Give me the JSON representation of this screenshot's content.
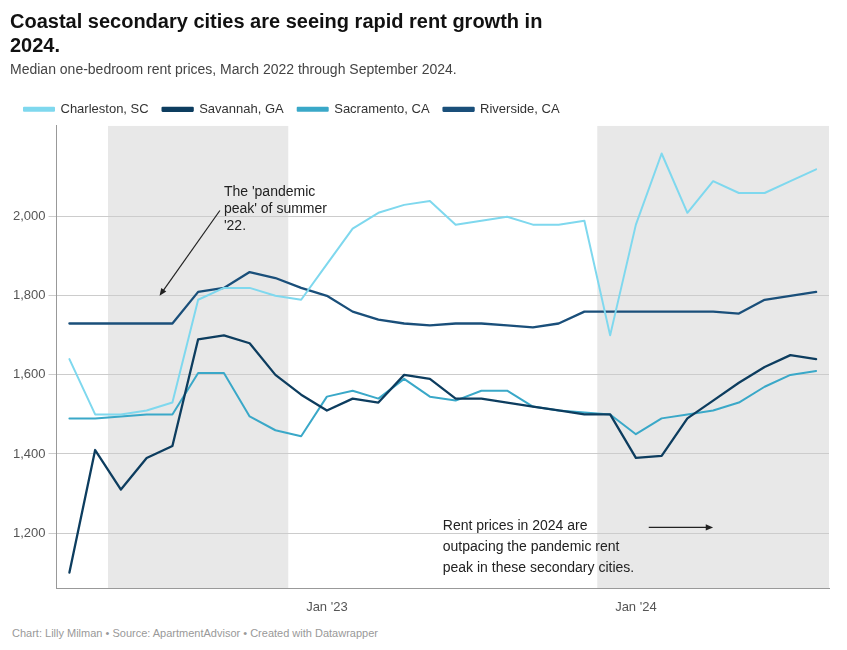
{
  "chart_data": {
    "type": "line",
    "title": [
      "Coastal secondary cities are seeing rapid rent growth in",
      "2024."
    ],
    "subtitle": "Median one-bedroom rent prices, March 2022 through September 2024.",
    "footer": "Chart: Lilly Milman • Source: ApartmentAdvisor • Created with Datawrapper",
    "categories": [
      null,
      null,
      null,
      null,
      null,
      null,
      null,
      null,
      null,
      null,
      "Jan '23",
      null,
      null,
      null,
      null,
      null,
      null,
      null,
      null,
      null,
      null,
      null,
      "Jan '24",
      null,
      null,
      null,
      null,
      null,
      null,
      null
    ],
    "series": [
      {
        "name": "Charleston, SC",
        "color": "#7FD8EE",
        "values": [
          1640,
          1500,
          1500,
          1510,
          1530,
          1790,
          1820,
          1820,
          1800,
          1790,
          1880,
          1970,
          2010,
          2030,
          2040,
          1980,
          1990,
          2000,
          1980,
          1980,
          1990,
          1700,
          1980,
          2160,
          2010,
          2090,
          2060,
          2060,
          2090,
          2120
        ]
      },
      {
        "name": "Savannah, GA",
        "color": "#0D3D5F",
        "values": [
          1100,
          1410,
          1310,
          1390,
          1420,
          1690,
          1700,
          1680,
          1600,
          1550,
          1510,
          1540,
          1530,
          1600,
          1590,
          1540,
          1540,
          1530,
          1520,
          1510,
          1500,
          1500,
          1390,
          1395,
          1490,
          1535,
          1580,
          1620,
          1650,
          1640
        ]
      },
      {
        "name": "Sacramento, CA",
        "color": "#3AA8C8",
        "values": [
          1490,
          1490,
          1495,
          1500,
          1500,
          1605,
          1605,
          1495,
          1460,
          1445,
          1545,
          1560,
          1540,
          1590,
          1545,
          1535,
          1560,
          1560,
          1520,
          1510,
          1505,
          1500,
          1450,
          1490,
          1500,
          1510,
          1530,
          1570,
          1600,
          1610
        ]
      },
      {
        "name": "Riverside, CA",
        "color": "#1A4F7A",
        "values": [
          1730,
          1730,
          1730,
          1730,
          1730,
          1810,
          1820,
          1860,
          1845,
          1820,
          1800,
          1760,
          1740,
          1730,
          1725,
          1730,
          1730,
          1725,
          1720,
          1730,
          1760,
          1760,
          1760,
          1760,
          1760,
          1760,
          1755,
          1790,
          1800,
          1810
        ]
      }
    ],
    "ylim": [
      1060,
      2230
    ],
    "yticks": [
      {
        "value": 1200,
        "label": "1,200"
      },
      {
        "value": 1400,
        "label": "1,400"
      },
      {
        "value": 1600,
        "label": "1,600"
      },
      {
        "value": 1800,
        "label": "1,800"
      },
      {
        "value": 2000,
        "label": "2,000"
      }
    ],
    "grid": true,
    "legend": "top-left",
    "shaded_regions": [
      {
        "start": 2,
        "end": 8,
        "color": "#E8E8E8"
      },
      {
        "start": 21,
        "end": 30,
        "color": "#E8E8E8"
      }
    ],
    "annotations": [
      {
        "text": "The 'pandemic\npeak' of summer\n'22."
      },
      {
        "text": "Rent prices in 2024 are\noutpacing the pandemic rent\npeak in these secondary cities."
      }
    ]
  }
}
